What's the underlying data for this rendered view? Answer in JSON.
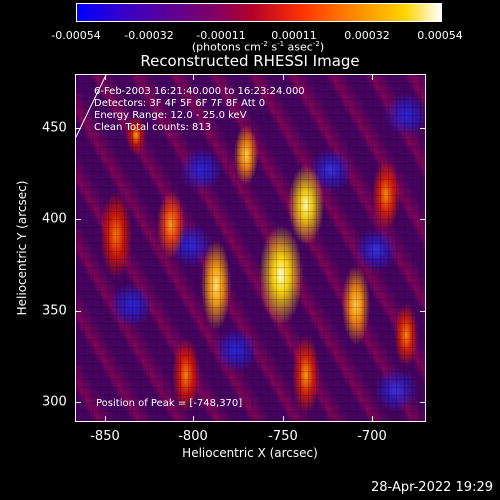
{
  "colorbar": {
    "ticks": [
      "-0.00054",
      "-0.00032",
      "-0.00011",
      "0.00011",
      "0.00032",
      "0.00054"
    ],
    "unit_prefix": "(photons cm",
    "unit_sup1": "-2",
    "unit_mid": " s",
    "unit_sup2": "-1",
    "unit_mid2": " asec",
    "unit_sup3": "-2",
    "unit_suffix": ")"
  },
  "title": "Reconstructed RHESSI Image",
  "overlay": {
    "time": "6-Feb-2003 16:21:40.000 to 16:23:24.000",
    "detectors": "Detectors: 3F 4F 5F 6F 7F 8F Att 0",
    "energy": "Energy Range: 12.0 - 25.0 keV",
    "clean": "Clean     Total counts: 813",
    "peak": "Position of Peak = [-748,370]"
  },
  "axes": {
    "x_label": "Heliocentric X (arcsec)",
    "y_label": "Heliocentric Y (arcsec)",
    "x_ticks": [
      "-850",
      "-800",
      "-750",
      "-700"
    ],
    "y_ticks": [
      "450",
      "400",
      "350",
      "300"
    ]
  },
  "footer": {
    "timestamp": "28-Apr-2022 19:29"
  },
  "colors": {
    "background": "#000000",
    "text": "#ffffff"
  }
}
